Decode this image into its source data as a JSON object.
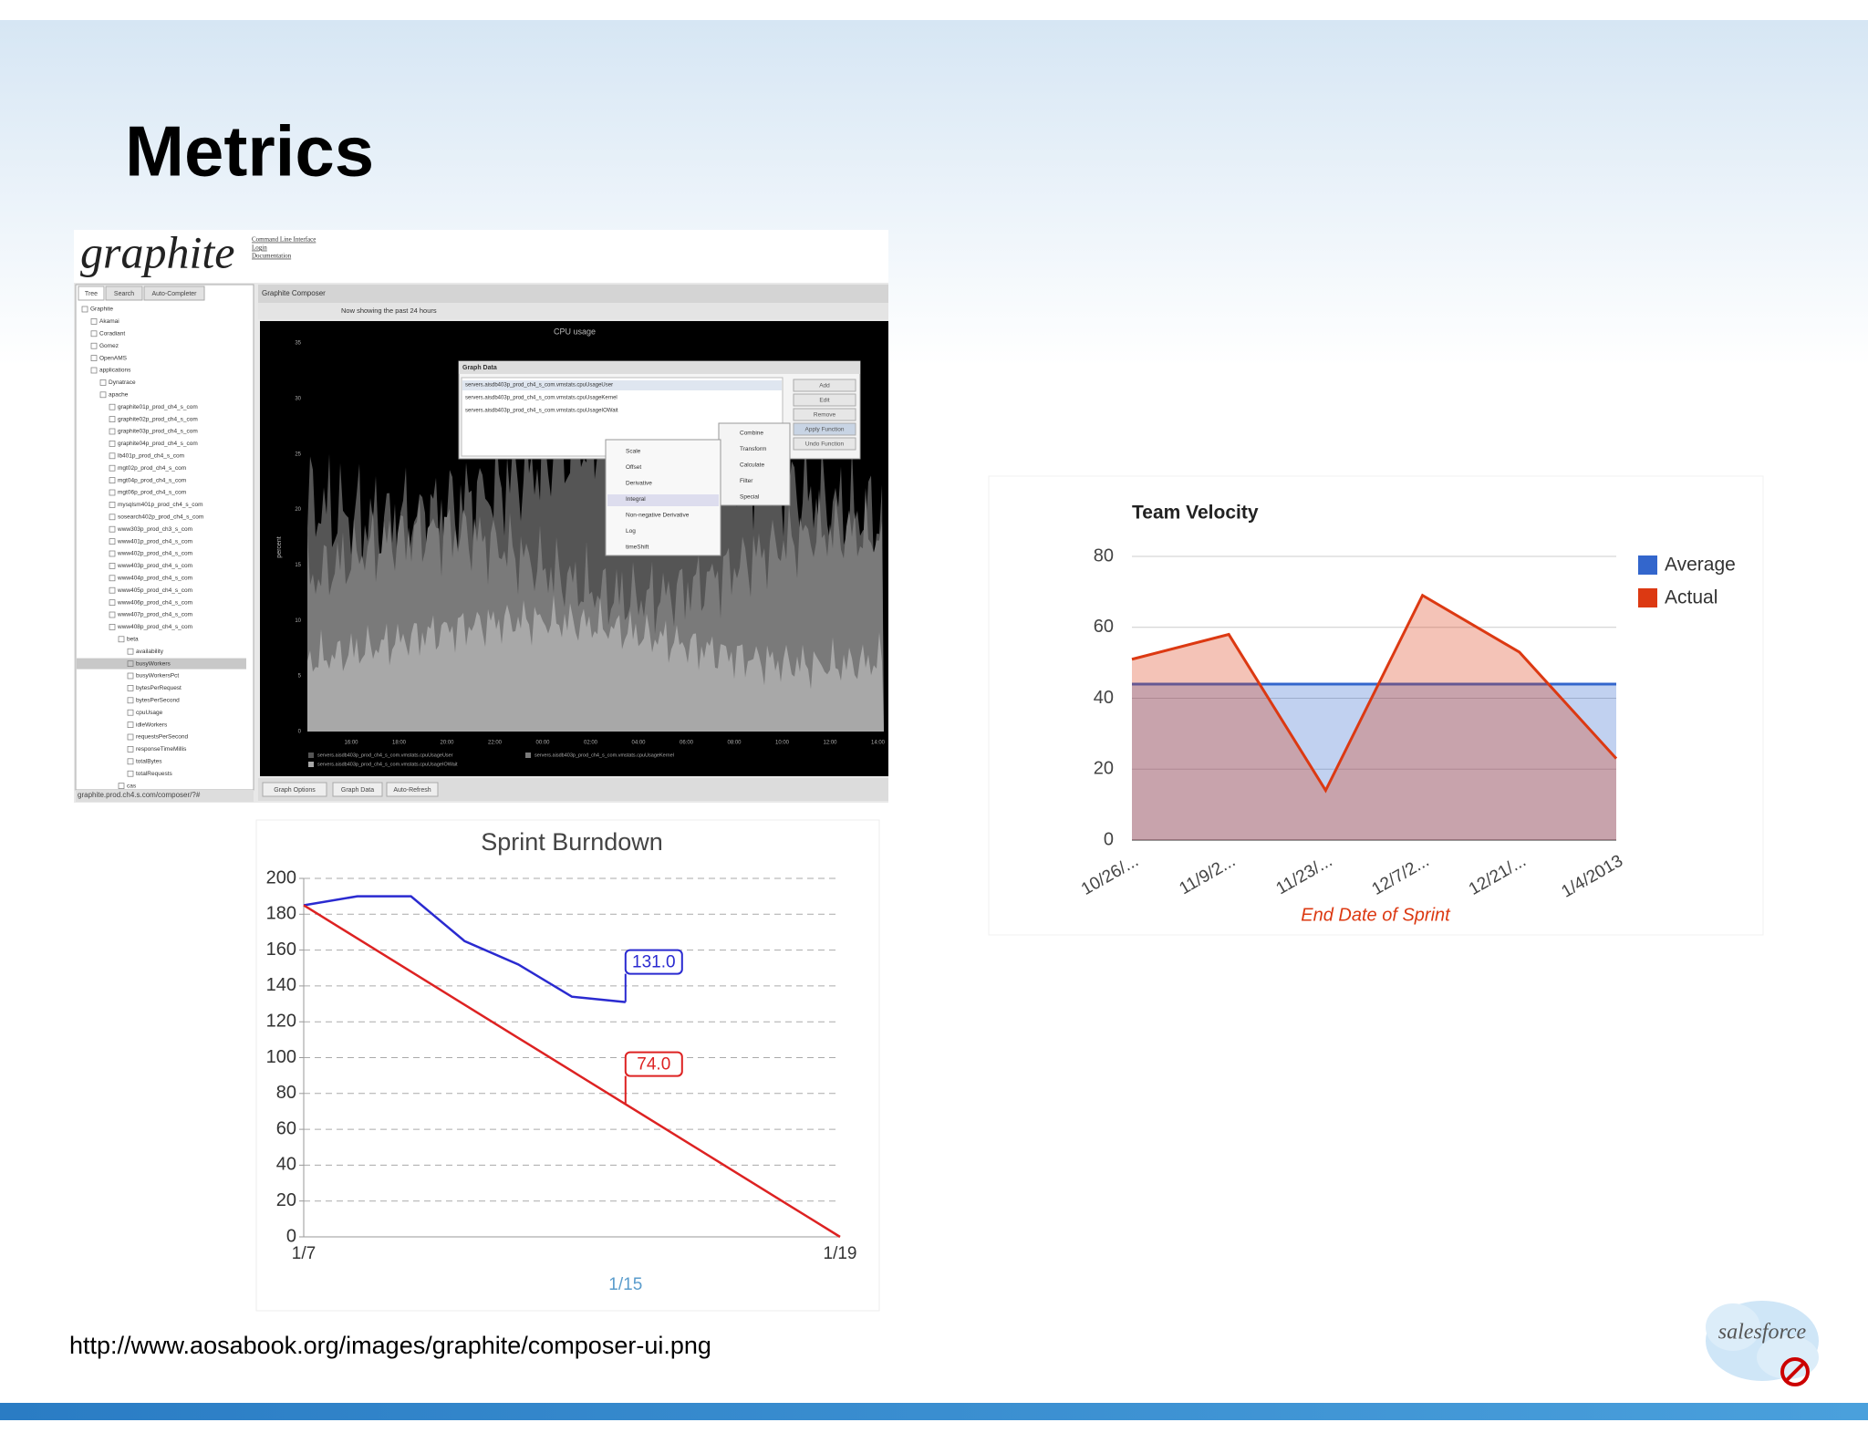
{
  "title": "Metrics",
  "source_url": "http://www.aosabook.org/images/graphite/composer-ui.png",
  "logo_text": "salesforce",
  "graphite": {
    "logo": "graphite",
    "links": [
      "Command Line Interface",
      "Login",
      "Documentation"
    ],
    "tabs": [
      "Tree",
      "Search",
      "Auto-Completer"
    ],
    "composer_title": "Graphite Composer",
    "status": "Now showing the past 24 hours",
    "graph_title": "CPU usage",
    "y_label": "percent",
    "y_tick_labels": [
      "0",
      "5",
      "10",
      "15",
      "20",
      "25",
      "30",
      "35"
    ],
    "x_tick_labels": [
      "16:00",
      "18:00",
      "20:00",
      "22:00",
      "00:00",
      "02:00",
      "04:00",
      "06:00",
      "08:00",
      "10:00",
      "12:00",
      "14:00"
    ],
    "legend": [
      "servers.aisdb403p_prod_ch4_s_com.vmstats.cpuUsageUser",
      "servers.aisdb403p_prod_ch4_s_com.vmstats.cpuUsageKernel",
      "servers.aisdb403p_prod_ch4_s_com.vmstats.cpuUsageIOWait"
    ],
    "tree": [
      "Graphite",
      "Akamai",
      "Coradiant",
      "Gomez",
      "OpenAMS",
      "applications",
      "Dynatrace",
      "apache",
      "graphite01p_prod_ch4_s_com",
      "graphite02p_prod_ch4_s_com",
      "graphite03p_prod_ch4_s_com",
      "graphite04p_prod_ch4_s_com",
      "lb401p_prod_ch4_s_com",
      "mgt02p_prod_ch4_s_com",
      "mgt04p_prod_ch4_s_com",
      "mgt06p_prod_ch4_s_com",
      "mysqlsm401p_prod_ch4_s_com",
      "sosearch402p_prod_ch4_s_com",
      "www303p_prod_ch3_s_com",
      "www401p_prod_ch4_s_com",
      "www402p_prod_ch4_s_com",
      "www403p_prod_ch4_s_com",
      "www404p_prod_ch4_s_com",
      "www405p_prod_ch4_s_com",
      "www406p_prod_ch4_s_com",
      "www407p_prod_ch4_s_com",
      "www408p_prod_ch4_s_com",
      "beta",
      "availability",
      "busyWorkers",
      "busyWorkersPct",
      "bytesPerRequest",
      "bytesPerSecond",
      "cpuUsage",
      "idleWorkers",
      "requestsPerSecond",
      "responseTimeMillis",
      "totalBytes",
      "totalRequests",
      "cas"
    ],
    "footer": "graphite.prod.ch4.s.com/composer/?#",
    "dialog_title": "Graph Data",
    "dialog_buttons": [
      "Add",
      "Edit",
      "Remove",
      "Apply Function",
      "Undo Function"
    ],
    "menu": [
      "Combine",
      "Transform",
      "Calculate",
      "Filter",
      "Special"
    ],
    "submenu": [
      "Scale",
      "Offset",
      "Derivative",
      "Integral",
      "Non-negative Derivative",
      "Log",
      "timeShift"
    ],
    "bottom_buttons": [
      "Graph Options",
      "Graph Data",
      "Auto-Refresh"
    ]
  },
  "chart_data": [
    {
      "type": "area",
      "title": "Team Velocity",
      "x_label": "End Date of Sprint",
      "categories": [
        "10/26/...",
        "11/9/2...",
        "11/23/...",
        "12/7/2...",
        "12/21/...",
        "1/4/2013"
      ],
      "series": [
        {
          "name": "Average",
          "color": "#3366cc",
          "values": [
            44,
            44,
            44,
            44,
            44,
            44
          ]
        },
        {
          "name": "Actual",
          "color": "#dc3912",
          "values": [
            51,
            58,
            14,
            69,
            53,
            23
          ]
        }
      ],
      "ylim": [
        0,
        80
      ],
      "yticks": [
        0,
        20,
        40,
        60,
        80
      ],
      "grid": true,
      "legend": "right"
    },
    {
      "type": "line",
      "title": "Sprint Burndown",
      "categories": [
        "1/7",
        null,
        null,
        null,
        null,
        null,
        "1/15",
        null,
        null,
        null,
        "1/19"
      ],
      "series": [
        {
          "color": "#2a2ad0",
          "values": [
            185,
            190,
            190,
            165,
            152,
            134,
            131,
            null,
            null,
            null,
            null
          ],
          "value_labels": [
            null,
            null,
            null,
            null,
            null,
            null,
            "131.0",
            null,
            null,
            null,
            null
          ]
        },
        {
          "color": "#dd2222",
          "values": [
            185,
            166.5,
            148,
            129.5,
            111,
            92.5,
            74,
            55.5,
            37,
            18.5,
            0
          ],
          "value_labels": [
            null,
            null,
            null,
            null,
            null,
            null,
            "74.0",
            null,
            null,
            null,
            null
          ]
        }
      ],
      "ylim": [
        0,
        200
      ],
      "yticks": [
        0,
        20,
        40,
        60,
        80,
        100,
        120,
        140,
        160,
        180,
        200
      ],
      "grid": true
    }
  ]
}
